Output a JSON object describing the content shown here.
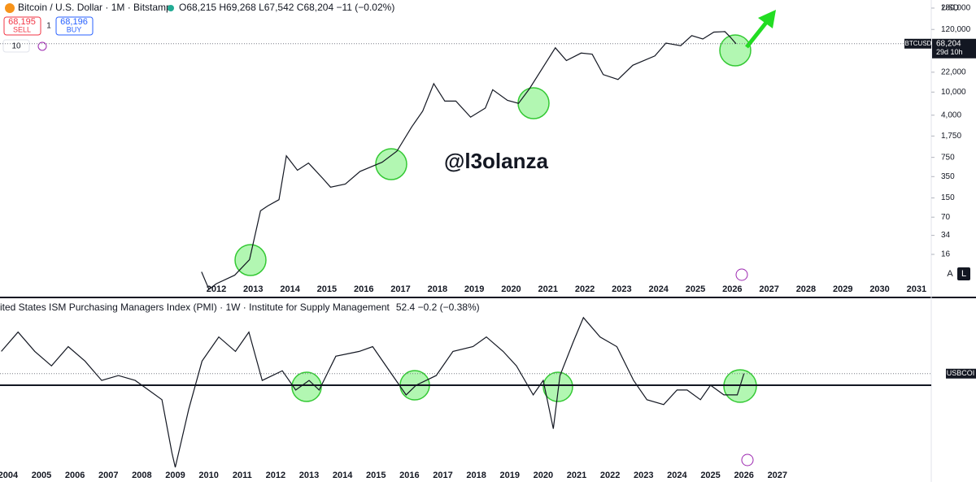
{
  "ui": {
    "sell_price": "68,195",
    "sell": "SELL",
    "qty": "1",
    "buy_price": "68,196",
    "buy": "BUY",
    "indicator": "10",
    "currency": "USD",
    "watermark": "@l3olanza",
    "auto": "A",
    "log": "L"
  },
  "chart_data": [
    {
      "type": "line",
      "title": "Bitcoin / U.S. Dollar · 1M · Bitstamp",
      "ohlc": "O68,215 H69,268 L67,542 C68,204 −11 (−0.02%)",
      "symbol": "BTCUSD",
      "last_price": {
        "value": 68204,
        "label": "68,204"
      },
      "countdown": "29d 10h",
      "log_scale": true,
      "color": "#131722",
      "x": [
        2011.6,
        2011.8,
        2012.0,
        2012.5,
        2012.9,
        2013.2,
        2013.4,
        2013.7,
        2013.9,
        2014.2,
        2014.5,
        2014.9,
        2015.1,
        2015.5,
        2015.9,
        2016.5,
        2016.9,
        2017.3,
        2017.6,
        2017.9,
        2018.2,
        2018.5,
        2018.9,
        2019.3,
        2019.5,
        2019.9,
        2020.2,
        2020.5,
        2020.9,
        2021.2,
        2021.5,
        2021.9,
        2022.2,
        2022.5,
        2022.9,
        2023.3,
        2023.9,
        2024.2,
        2024.6,
        2024.9,
        2025.2,
        2025.5,
        2025.8,
        2025.95,
        2026.1
      ],
      "values": [
        8,
        4,
        5,
        7,
        13,
        90,
        110,
        140,
        800,
        450,
        600,
        320,
        230,
        260,
        430,
        620,
        960,
        2500,
        4700,
        14000,
        7000,
        7000,
        3700,
        5300,
        11000,
        7200,
        6400,
        11500,
        29000,
        58000,
        35000,
        47000,
        45000,
        20000,
        16500,
        29000,
        42000,
        70000,
        63000,
        94000,
        82000,
        108000,
        110000,
        88000,
        68204
      ],
      "xlim": [
        2006.13,
        2031.4
      ],
      "xticks": [
        2012,
        2013,
        2014,
        2015,
        2016,
        2017,
        2018,
        2019,
        2020,
        2021,
        2022,
        2023,
        2024,
        2025,
        2026,
        2027,
        2028,
        2029,
        2030,
        2031
      ],
      "ylim": [
        5.7,
        386000
      ],
      "yticks": [
        16,
        34,
        70,
        150,
        350,
        750,
        {
          "value": 1750,
          "label": "1,750"
        },
        {
          "value": 4000,
          "label": "4,000"
        },
        {
          "value": 10000,
          "label": "10,000"
        },
        {
          "value": 22000,
          "label": "22,000"
        },
        {
          "value": 120000,
          "label": "120,000"
        },
        {
          "value": 280000,
          "label": "280,000"
        }
      ]
    },
    {
      "type": "line",
      "title": "ited States ISM Purchasing Managers Index (PMI) · 1W · Institute for Supply Management",
      "change": "52.4 −0.2 (−0.38%)",
      "symbol": "USBCOI",
      "last_value": 52.4,
      "reference_line": 50,
      "color": "#131722",
      "x": [
        2003.8,
        2004.3,
        2004.8,
        2005.3,
        2005.8,
        2006.3,
        2006.8,
        2007.3,
        2007.8,
        2008.2,
        2008.6,
        2008.9,
        2009.0,
        2009.4,
        2009.8,
        2010.3,
        2010.8,
        2011.2,
        2011.6,
        2012.2,
        2012.6,
        2013.0,
        2013.3,
        2013.8,
        2014.5,
        2014.9,
        2015.5,
        2015.9,
        2016.2,
        2016.8,
        2017.3,
        2017.9,
        2018.3,
        2018.8,
        2019.2,
        2019.7,
        2020.0,
        2020.3,
        2020.5,
        2020.9,
        2021.2,
        2021.7,
        2022.2,
        2022.7,
        2023.1,
        2023.6,
        2024.0,
        2024.3,
        2024.7,
        2025.0,
        2025.4,
        2025.8,
        2026.0
      ],
      "values": [
        57,
        61,
        57,
        54,
        58,
        55,
        51,
        52,
        51,
        49,
        47,
        36,
        33,
        45,
        55,
        60,
        57,
        61,
        51,
        53,
        49,
        51,
        49,
        56,
        57,
        58,
        52,
        48,
        50,
        52,
        57,
        58,
        60,
        57,
        54,
        48,
        51,
        41,
        52,
        59,
        64,
        60,
        58,
        51,
        47,
        46,
        49,
        49,
        47,
        50,
        48,
        48,
        52.4
      ],
      "xlim": [
        2003.76,
        2031.6
      ],
      "xticks": [
        2004,
        2005,
        2006,
        2007,
        2008,
        2009,
        2010,
        2011,
        2012,
        2013,
        2014,
        2015,
        2016,
        2017,
        2018,
        2019,
        2020,
        2021,
        2022,
        2023,
        2024,
        2025,
        2026,
        2027
      ],
      "ylim": [
        32.5,
        67.5
      ]
    }
  ]
}
